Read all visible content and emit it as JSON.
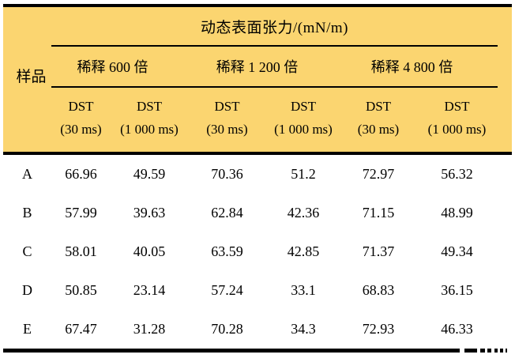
{
  "colors": {
    "header_background": "#FBD570",
    "rule": "#000000",
    "text": "#000000"
  },
  "table": {
    "title": "动态表面张力/(mN/m)",
    "sample_header": "样品",
    "groups": [
      "稀释 600 倍",
      "稀释 1 200 倍",
      "稀释 4 800 倍"
    ],
    "subcols": [
      {
        "name": "DST",
        "time": "(30 ms)"
      },
      {
        "name": "DST",
        "time": "(1 000 ms)"
      },
      {
        "name": "DST",
        "time": "(30 ms)"
      },
      {
        "name": "DST",
        "time": "(1 000 ms)"
      },
      {
        "name": "DST",
        "time": "(30 ms)"
      },
      {
        "name": "DST",
        "time": "(1 000 ms)"
      }
    ],
    "rows": [
      {
        "sample": "A",
        "values": [
          "66.96",
          "49.59",
          "70.36",
          "51.2",
          "72.97",
          "56.32"
        ]
      },
      {
        "sample": "B",
        "values": [
          "57.99",
          "39.63",
          "62.84",
          "42.36",
          "71.15",
          "48.99"
        ]
      },
      {
        "sample": "C",
        "values": [
          "58.01",
          "40.05",
          "63.59",
          "42.85",
          "71.37",
          "49.34"
        ]
      },
      {
        "sample": "D",
        "values": [
          "50.85",
          "23.14",
          "57.24",
          "33.1",
          "68.83",
          "36.15"
        ]
      },
      {
        "sample": "E",
        "values": [
          "67.47",
          "31.28",
          "70.28",
          "34.3",
          "72.93",
          "46.33"
        ]
      }
    ]
  }
}
